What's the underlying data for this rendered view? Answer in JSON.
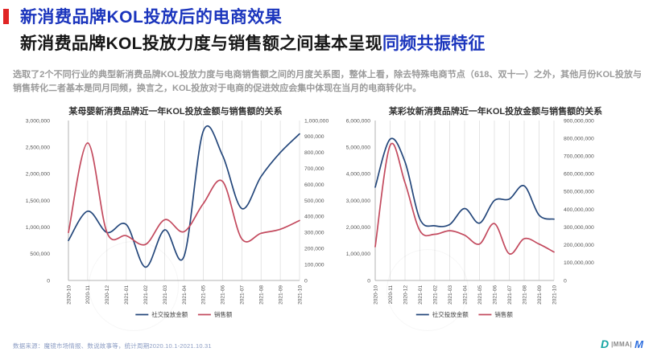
{
  "page": {
    "title": "新消费品牌KOL投放后的电商效果",
    "subtitle_plain": "新消费品牌KOL投放力度与销售额之间基本呈现",
    "subtitle_highlight": "同频共振特征",
    "body": "选取了2个不同行业的典型新消费品牌KOL投放力度与电商销售额之间的月度关系图，整体上看，除去特殊电商节点（618、双十一）之外，其他月份KOL投放与销售转化二者基本是同月同频，换言之，KOL投放对于电商的促进效应会集中体现在当月的电商转化中。"
  },
  "colors": {
    "accent_blue": "#1b35bd",
    "bullet_red": "#e02525",
    "spend_line": "#24477b",
    "sales_line": "#c34a5e",
    "grid": "#d9d9d9",
    "axis_line": "#b3b3b3",
    "axis_text": "#555555",
    "legend_text": "#444444"
  },
  "chart_data": [
    {
      "type": "line",
      "title": "某母婴新消费品牌近一年KOL投放金额与销售额的关系",
      "x": [
        "2020-10",
        "2020-11",
        "2020-12",
        "2021-01",
        "2021-02",
        "2021-03",
        "2021-04",
        "2021-05",
        "2021-06",
        "2021-07",
        "2021-08",
        "2021-09",
        "2021-10"
      ],
      "left_axis": {
        "min": 0,
        "max": 3000000,
        "step": 500000
      },
      "right_axis": {
        "min": 0,
        "max": 1000000,
        "step": 100000
      },
      "grid": "vertical",
      "legend_position": "bottom",
      "series": [
        {
          "name": "社交投放金额",
          "axis": "left",
          "color": "spend_line",
          "values": [
            750000,
            1300000,
            900000,
            1050000,
            250000,
            950000,
            450000,
            2800000,
            2350000,
            1350000,
            1950000,
            2400000,
            2750000
          ]
        },
        {
          "name": "销售额",
          "axis": "right",
          "color": "sales_line",
          "values": [
            300000,
            860000,
            300000,
            280000,
            225000,
            380000,
            305000,
            480000,
            620000,
            260000,
            295000,
            320000,
            375000
          ]
        }
      ]
    },
    {
      "type": "line",
      "title": "某彩妆新消费品牌近一年KOL投放金额与销售额的关系",
      "x": [
        "2020-10",
        "2020-11",
        "2020-12",
        "2021-01",
        "2021-02",
        "2021-03",
        "2021-04",
        "2021-05",
        "2021-06",
        "2021-07",
        "2021-08",
        "2021-09",
        "2021-10"
      ],
      "left_axis": {
        "min": 0,
        "max": 6000000,
        "step": 1000000
      },
      "right_axis": {
        "min": 0,
        "max": 900000000,
        "step": 100000000
      },
      "grid": "vertical",
      "legend_position": "bottom",
      "series": [
        {
          "name": "社交投放金额",
          "axis": "left",
          "color": "spend_line",
          "values": [
            3500000,
            5300000,
            4450000,
            2300000,
            2050000,
            2100000,
            2700000,
            2150000,
            3000000,
            3050000,
            3550000,
            2450000,
            2300000
          ]
        },
        {
          "name": "销售额",
          "axis": "right",
          "color": "sales_line",
          "values": [
            190000000,
            760000000,
            550000000,
            280000000,
            260000000,
            280000000,
            255000000,
            205000000,
            320000000,
            150000000,
            235000000,
            205000000,
            160000000
          ]
        }
      ]
    }
  ],
  "footer": {
    "source": "数据来源：魔镜市场情报、数说故事等，统计周期2020.10.1-2021.10.31",
    "logo_d": "D",
    "logo_mma": "|MMA|",
    "logo_m": "M"
  }
}
